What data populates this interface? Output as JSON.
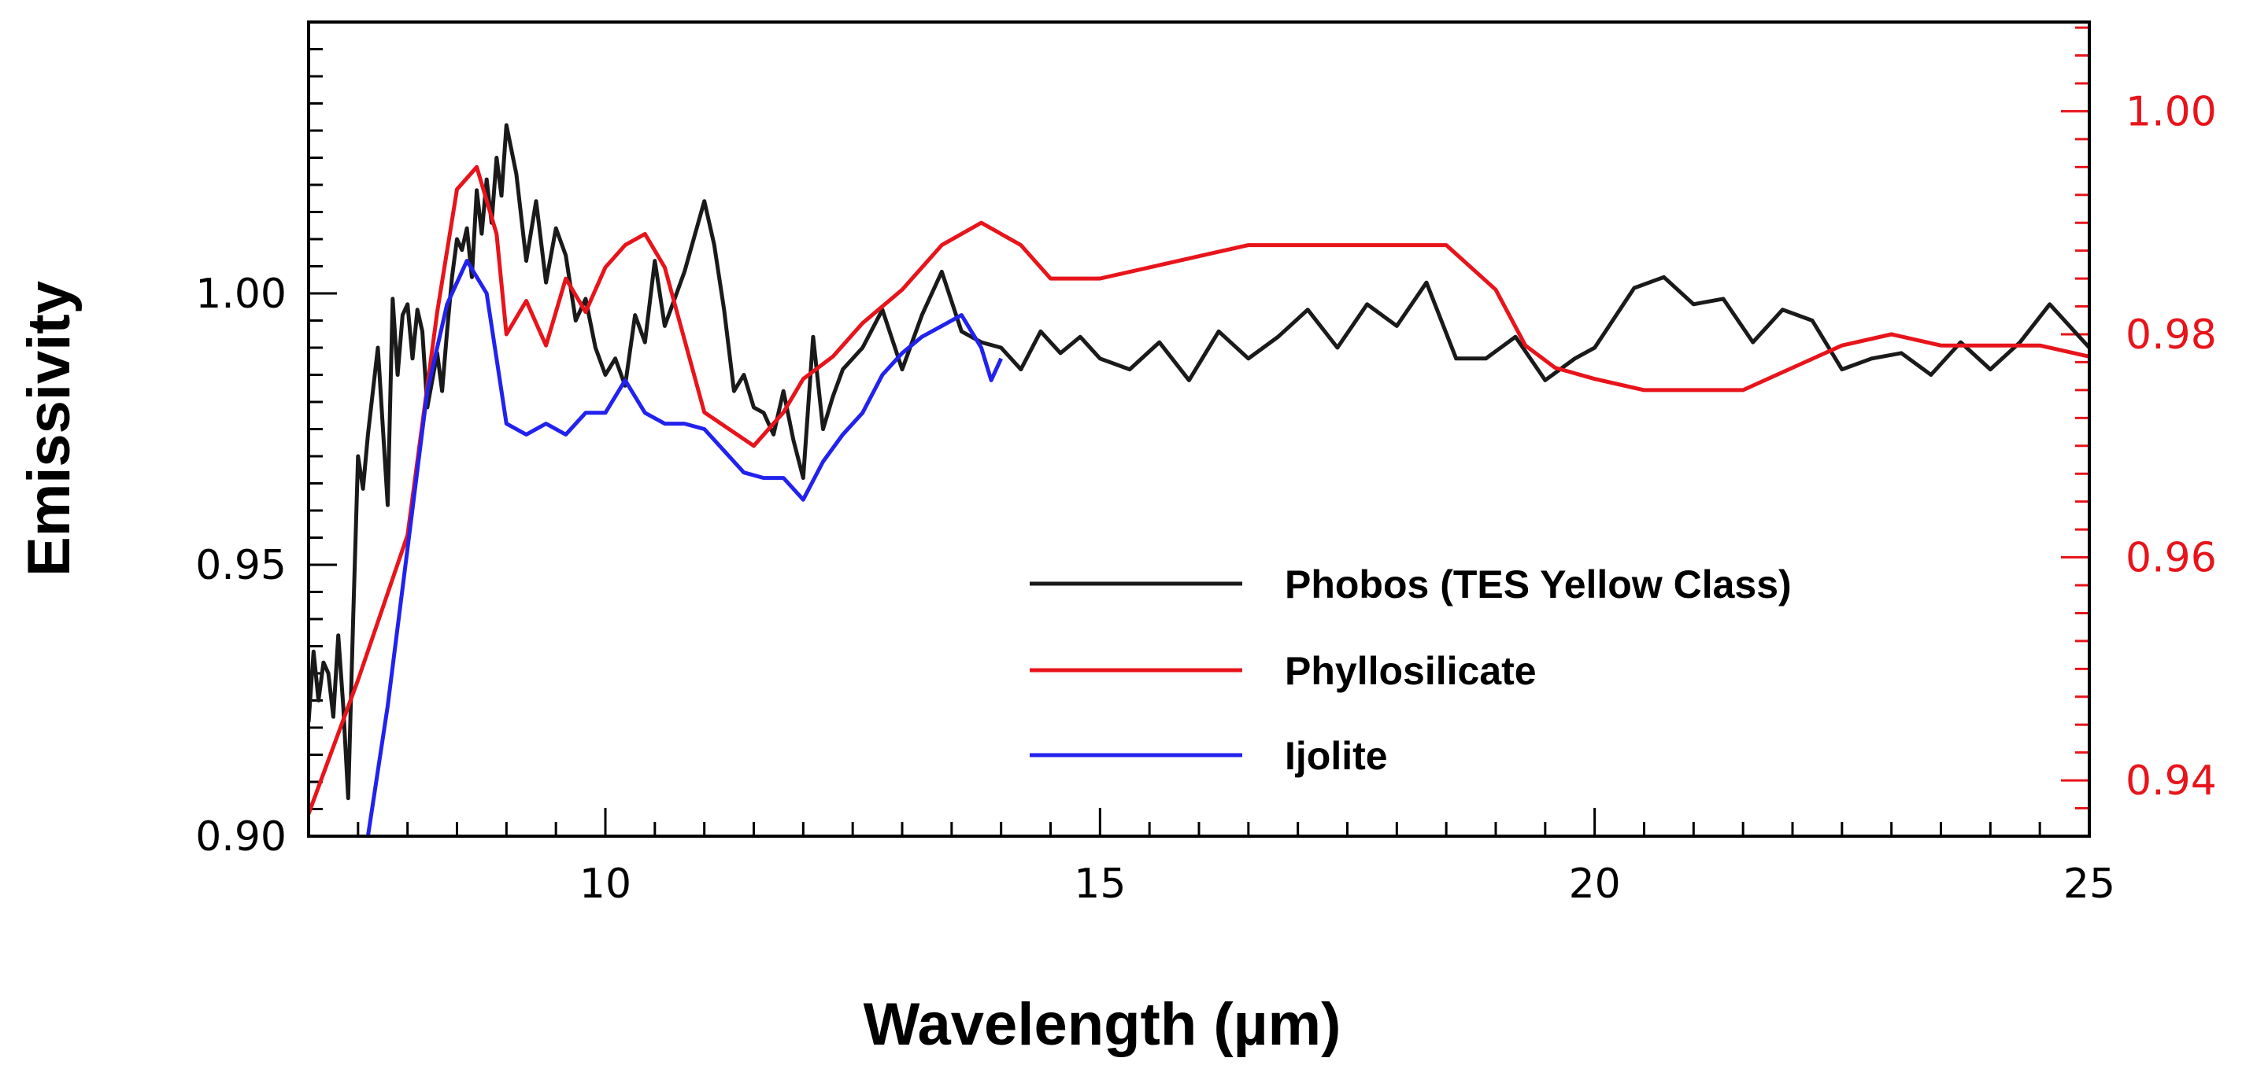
{
  "chart_data": {
    "type": "line",
    "title": "",
    "xlabel": "Wavelength (µm)",
    "ylabel": "Emissivity",
    "xlim": [
      7.0,
      25.0
    ],
    "ylim_left": [
      0.9,
      1.05
    ],
    "ylim_right": [
      0.935,
      1.008
    ],
    "x_major_ticks": [
      10,
      15,
      20,
      25
    ],
    "x_minor_step": 0.5,
    "y_left_ticks": [
      0.9,
      0.95,
      1.0
    ],
    "y_left_tick_labels": [
      "0.90",
      "0.95",
      "1.00"
    ],
    "y_left_minor_step": 0.005,
    "y_right_ticks": [
      0.94,
      0.96,
      0.98,
      1.0
    ],
    "y_right_tick_labels": [
      "0.94",
      "0.96",
      "0.98",
      "1.00"
    ],
    "y_right_minor_step": 0.0025,
    "right_axis_color": "#e8141b",
    "legend_position": "lower-right",
    "series": [
      {
        "name": "Phobos (TES Yellow Class)",
        "color": "#1a1a1a",
        "axis": "left",
        "x": [
          7.0,
          7.05,
          7.1,
          7.15,
          7.2,
          7.25,
          7.3,
          7.35,
          7.4,
          7.45,
          7.5,
          7.55,
          7.6,
          7.7,
          7.8,
          7.85,
          7.9,
          7.95,
          8.0,
          8.05,
          8.1,
          8.15,
          8.2,
          8.25,
          8.3,
          8.35,
          8.4,
          8.45,
          8.5,
          8.55,
          8.6,
          8.65,
          8.7,
          8.75,
          8.8,
          8.85,
          8.9,
          8.95,
          9.0,
          9.1,
          9.2,
          9.3,
          9.4,
          9.5,
          9.6,
          9.7,
          9.8,
          9.9,
          10.0,
          10.1,
          10.2,
          10.3,
          10.4,
          10.5,
          10.6,
          10.8,
          11.0,
          11.1,
          11.2,
          11.3,
          11.4,
          11.5,
          11.6,
          11.7,
          11.8,
          11.9,
          12.0,
          12.1,
          12.2,
          12.3,
          12.4,
          12.6,
          12.8,
          13.0,
          13.2,
          13.4,
          13.6,
          13.8,
          14.0,
          14.2,
          14.4,
          14.6,
          14.8,
          15.0,
          15.3,
          15.6,
          15.9,
          16.2,
          16.5,
          16.8,
          17.1,
          17.4,
          17.7,
          18.0,
          18.3,
          18.6,
          18.9,
          19.2,
          19.5,
          19.8,
          20.0,
          20.4,
          20.7,
          21.0,
          21.3,
          21.6,
          21.9,
          22.2,
          22.5,
          22.8,
          23.1,
          23.4,
          23.7,
          24.0,
          24.3,
          24.6,
          25.0
        ],
        "values": [
          0.921,
          0.934,
          0.925,
          0.932,
          0.93,
          0.922,
          0.937,
          0.924,
          0.907,
          0.94,
          0.97,
          0.964,
          0.974,
          0.99,
          0.961,
          0.999,
          0.985,
          0.996,
          0.998,
          0.988,
          0.997,
          0.993,
          0.979,
          0.984,
          0.989,
          0.982,
          0.993,
          1.003,
          1.01,
          1.008,
          1.012,
          1.003,
          1.019,
          1.011,
          1.021,
          1.013,
          1.025,
          1.018,
          1.031,
          1.022,
          1.006,
          1.017,
          1.002,
          1.012,
          1.007,
          0.995,
          0.999,
          0.99,
          0.985,
          0.988,
          0.983,
          0.996,
          0.991,
          1.006,
          0.994,
          1.004,
          1.017,
          1.009,
          0.997,
          0.982,
          0.985,
          0.979,
          0.978,
          0.974,
          0.982,
          0.973,
          0.966,
          0.992,
          0.975,
          0.981,
          0.986,
          0.99,
          0.997,
          0.986,
          0.996,
          1.004,
          0.993,
          0.991,
          0.99,
          0.986,
          0.993,
          0.989,
          0.992,
          0.988,
          0.986,
          0.991,
          0.984,
          0.993,
          0.988,
          0.992,
          0.997,
          0.99,
          0.998,
          0.994,
          1.002,
          0.988,
          0.988,
          0.992,
          0.984,
          0.988,
          0.99,
          1.001,
          1.003,
          0.998,
          0.999,
          0.991,
          0.997,
          0.995,
          0.986,
          0.988,
          0.989,
          0.985,
          0.991,
          0.986,
          0.991,
          0.998,
          0.99
        ]
      },
      {
        "name": "Phyllosilicate",
        "color": "#e8141b",
        "axis": "right",
        "x": [
          7.0,
          7.5,
          8.0,
          8.3,
          8.5,
          8.7,
          8.9,
          9.0,
          9.2,
          9.4,
          9.6,
          9.8,
          10.0,
          10.2,
          10.4,
          10.6,
          11.0,
          11.5,
          11.8,
          12.0,
          12.3,
          12.6,
          13.0,
          13.4,
          13.8,
          14.2,
          14.5,
          15.0,
          15.5,
          16.0,
          16.5,
          17.0,
          17.5,
          18.0,
          18.5,
          19.0,
          19.3,
          19.6,
          20.0,
          20.5,
          21.0,
          21.5,
          22.0,
          22.5,
          23.0,
          23.5,
          24.0,
          24.5,
          25.0
        ],
        "values": [
          0.937,
          0.949,
          0.962,
          0.982,
          0.993,
          0.995,
          0.989,
          0.98,
          0.983,
          0.979,
          0.985,
          0.982,
          0.986,
          0.988,
          0.989,
          0.986,
          0.973,
          0.97,
          0.973,
          0.976,
          0.978,
          0.981,
          0.984,
          0.988,
          0.99,
          0.988,
          0.985,
          0.985,
          0.986,
          0.987,
          0.988,
          0.988,
          0.988,
          0.988,
          0.988,
          0.984,
          0.979,
          0.977,
          0.976,
          0.975,
          0.975,
          0.975,
          0.977,
          0.979,
          0.98,
          0.979,
          0.979,
          0.979,
          0.978
        ]
      },
      {
        "name": "Ijolite",
        "color": "#2222ee",
        "axis": "left",
        "x": [
          7.6,
          7.8,
          8.0,
          8.2,
          8.4,
          8.6,
          8.8,
          9.0,
          9.2,
          9.4,
          9.6,
          9.8,
          10.0,
          10.2,
          10.4,
          10.6,
          10.8,
          11.0,
          11.2,
          11.4,
          11.6,
          11.8,
          12.0,
          12.2,
          12.4,
          12.6,
          12.8,
          13.0,
          13.2,
          13.4,
          13.6,
          13.8,
          13.9,
          14.0
        ],
        "values": [
          0.9,
          0.924,
          0.953,
          0.982,
          0.998,
          1.006,
          1.0,
          0.976,
          0.974,
          0.976,
          0.974,
          0.978,
          0.978,
          0.984,
          0.978,
          0.976,
          0.976,
          0.975,
          0.971,
          0.967,
          0.966,
          0.966,
          0.962,
          0.969,
          0.974,
          0.978,
          0.985,
          0.989,
          0.992,
          0.994,
          0.996,
          0.99,
          0.984,
          0.988
        ]
      }
    ]
  }
}
